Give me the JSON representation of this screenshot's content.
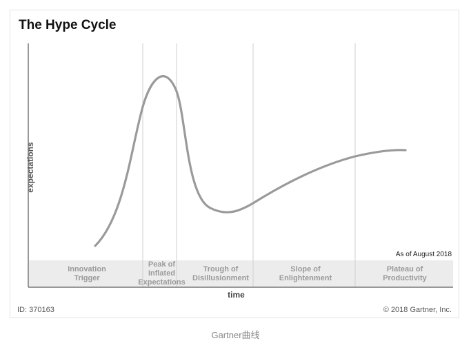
{
  "title": "The Hype Cycle",
  "axes": {
    "y_label": "expectations",
    "x_label": "time"
  },
  "phases": [
    {
      "label": "Innovation\nTrigger"
    },
    {
      "label": "Peak of\nInflated\nExpectations"
    },
    {
      "label": "Trough of\nDisillusionment"
    },
    {
      "label": "Slope of\nEnlightenment"
    },
    {
      "label": "Plateau of\nProductivity"
    }
  ],
  "as_of": "As of August 2018",
  "id_text": "ID: 370163",
  "copyright": "© 2018 Gartner, Inc.",
  "caption": "Gartner曲线",
  "colors": {
    "curve": "#9a9a9a",
    "band": "#ececec",
    "divider": "#cfcfcf",
    "axis": "#777777"
  }
}
